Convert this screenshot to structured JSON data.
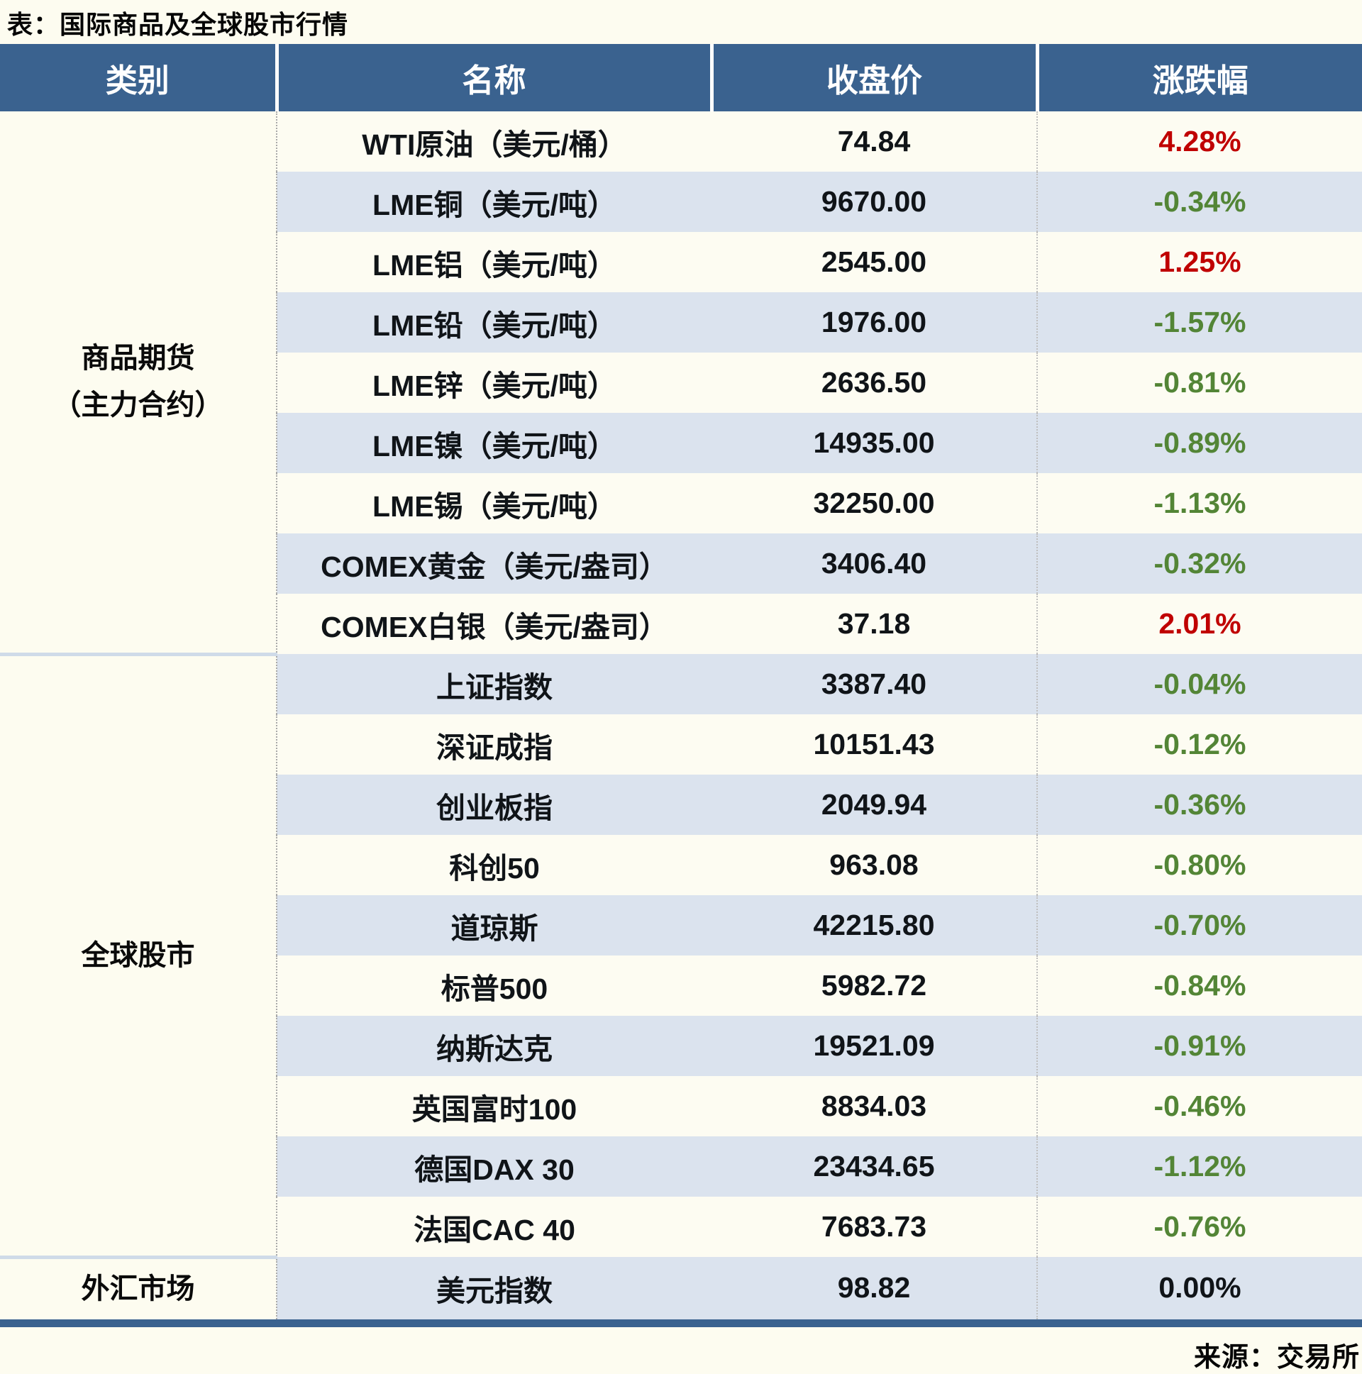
{
  "title": "表：国际商品及全球股市行情",
  "source": "来源：交易所",
  "colors": {
    "header_bg": "#3a628f",
    "stripe_row": "#dbe3ee",
    "plain_row": "#fdfcf2",
    "page_bg": "#fdfcf0",
    "up_red": "#c00000",
    "down_green": "#538536",
    "neutral_text": "#101418",
    "bottom_border": "#3a628f",
    "section_divider": "#cfdbe8"
  },
  "table": {
    "headers": [
      "类别",
      "名称",
      "收盘价",
      "涨跌幅"
    ],
    "sections": [
      {
        "category": "商品期货（主力合约）",
        "category_lines": [
          "商品期货",
          "（主力合约）"
        ],
        "rows": [
          {
            "name": "WTI原油（美元/桶）",
            "close": "74.84",
            "change": "4.28%",
            "dir": "up"
          },
          {
            "name": "LME铜（美元/吨）",
            "close": "9670.00",
            "change": "-0.34%",
            "dir": "down"
          },
          {
            "name": "LME铝（美元/吨）",
            "close": "2545.00",
            "change": "1.25%",
            "dir": "up"
          },
          {
            "name": "LME铅（美元/吨）",
            "close": "1976.00",
            "change": "-1.57%",
            "dir": "down"
          },
          {
            "name": "LME锌（美元/吨）",
            "close": "2636.50",
            "change": "-0.81%",
            "dir": "down"
          },
          {
            "name": "LME镍（美元/吨）",
            "close": "14935.00",
            "change": "-0.89%",
            "dir": "down"
          },
          {
            "name": "LME锡（美元/吨）",
            "close": "32250.00",
            "change": "-1.13%",
            "dir": "down"
          },
          {
            "name": "COMEX黄金（美元/盎司）",
            "close": "3406.40",
            "change": "-0.32%",
            "dir": "down"
          },
          {
            "name": "COMEX白银（美元/盎司）",
            "close": "37.18",
            "change": "2.01%",
            "dir": "up"
          }
        ]
      },
      {
        "category": "全球股市",
        "category_lines": [
          "全球股市"
        ],
        "rows": [
          {
            "name": "上证指数",
            "close": "3387.40",
            "change": "-0.04%",
            "dir": "down"
          },
          {
            "name": "深证成指",
            "close": "10151.43",
            "change": "-0.12%",
            "dir": "down"
          },
          {
            "name": "创业板指",
            "close": "2049.94",
            "change": "-0.36%",
            "dir": "down"
          },
          {
            "name": "科创50",
            "close": "963.08",
            "change": "-0.80%",
            "dir": "down"
          },
          {
            "name": "道琼斯",
            "close": "42215.80",
            "change": "-0.70%",
            "dir": "down"
          },
          {
            "name": "标普500",
            "close": "5982.72",
            "change": "-0.84%",
            "dir": "down"
          },
          {
            "name": "纳斯达克",
            "close": "19521.09",
            "change": "-0.91%",
            "dir": "down"
          },
          {
            "name": "英国富时100",
            "close": "8834.03",
            "change": "-0.46%",
            "dir": "down"
          },
          {
            "name": "德国DAX 30",
            "close": "23434.65",
            "change": "-1.12%",
            "dir": "down"
          },
          {
            "name": "法国CAC 40",
            "close": "7683.73",
            "change": "-0.76%",
            "dir": "down"
          }
        ]
      },
      {
        "category": "外汇市场",
        "category_lines": [
          "外汇市场"
        ],
        "rows": [
          {
            "name": "美元指数",
            "close": "98.82",
            "change": "0.00%",
            "dir": "flat"
          }
        ]
      }
    ]
  }
}
